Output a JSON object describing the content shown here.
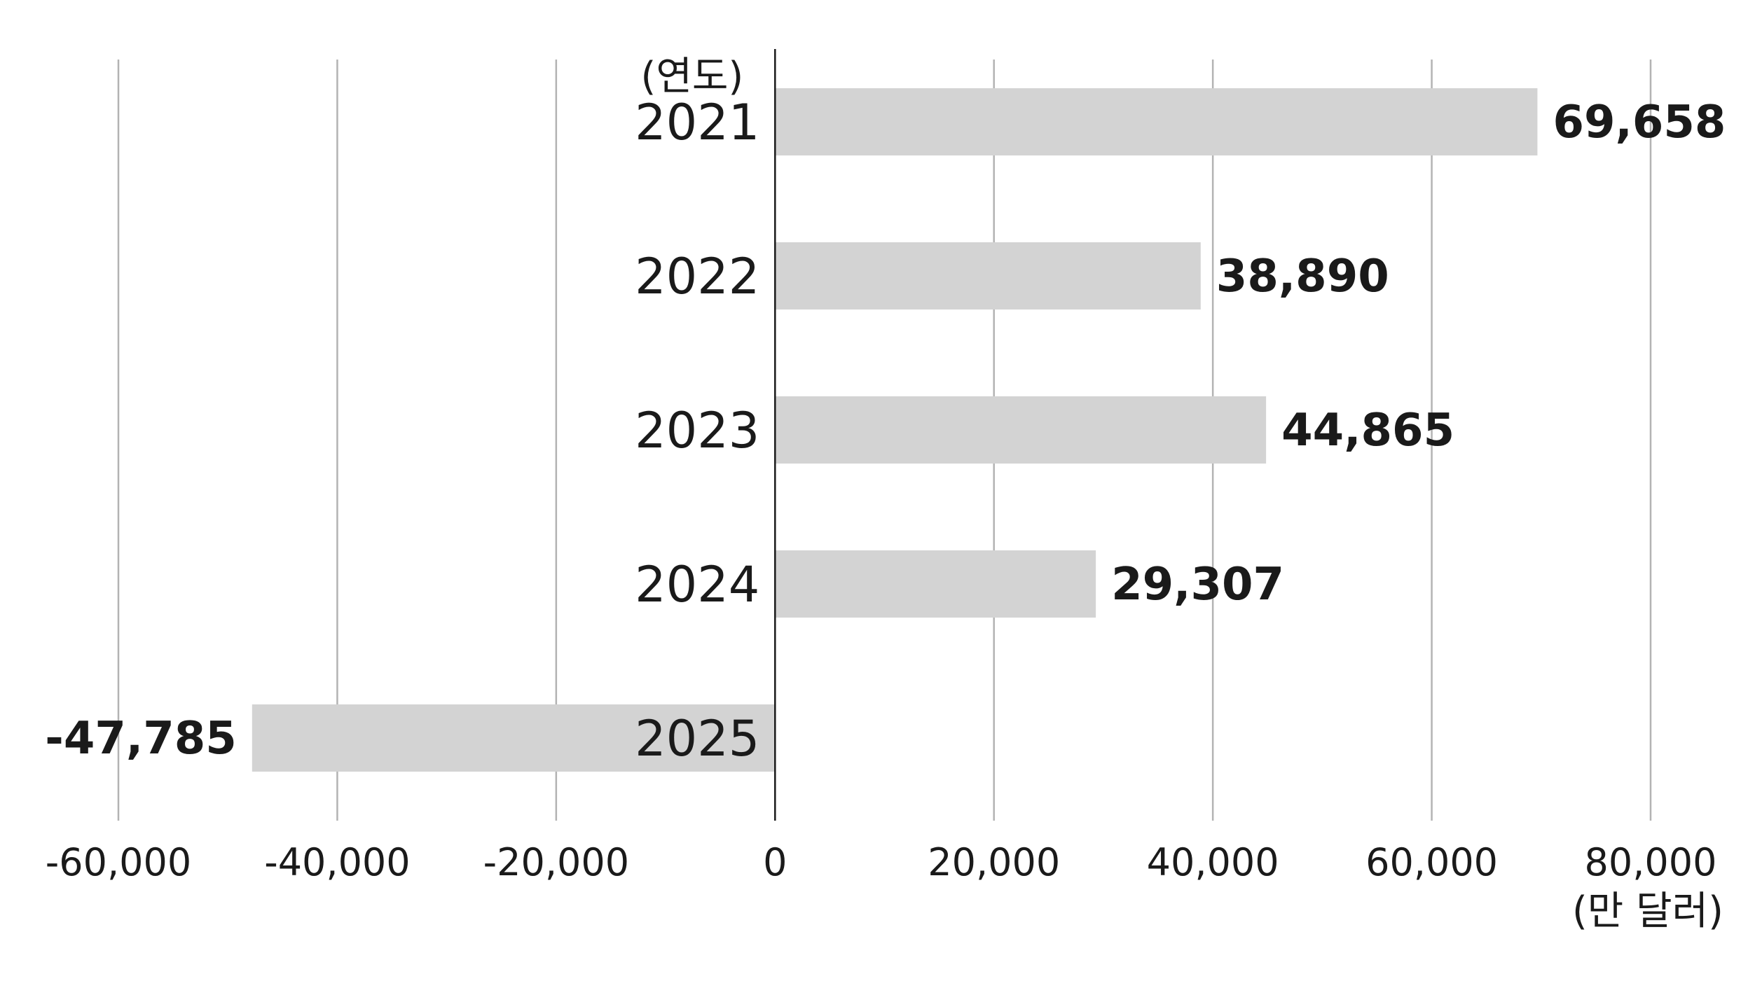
{
  "chart_data": {
    "type": "bar",
    "orientation": "horizontal",
    "categories": [
      "2021",
      "2022",
      "2023",
      "2024",
      "2025"
    ],
    "values": [
      69658,
      38890,
      44865,
      29307,
      -47785
    ],
    "data_labels": [
      "69,658",
      "38,890",
      "44,865",
      "29,307",
      "-47,785"
    ],
    "y_axis_title": "(연도)",
    "x_axis_unit": "(만 달러)",
    "xlim": [
      -60000,
      80000
    ],
    "x_ticks": [
      -60000,
      -40000,
      -20000,
      0,
      20000,
      40000,
      60000,
      80000
    ],
    "x_tick_labels": [
      "-60,000",
      "-40,000",
      "-20,000",
      "0",
      "20,000",
      "40,000",
      "60,000",
      "80,000"
    ],
    "grid": "vertical",
    "legend": "none",
    "colors": {
      "bar": "#d3d3d3",
      "grid": "#b3b3b3",
      "axis": "#1a1a1a",
      "text": "#1a1a1a"
    }
  }
}
